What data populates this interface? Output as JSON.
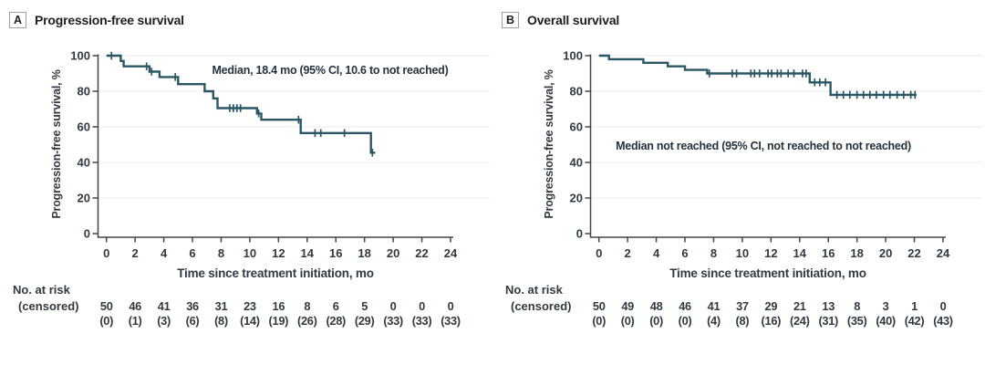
{
  "colors": {
    "curve": "#2b5665",
    "grid": "#ececec",
    "axis": "#454545",
    "text": "#303a42",
    "title": "#1e1e1c",
    "annotation": "#24323d",
    "tag_border": "#9aa1a7"
  },
  "chart_data": {
    "type": "line",
    "subtype": "kaplan-meier-step",
    "grid": "horizontal-light",
    "legend": "none",
    "xlim": [
      0,
      24
    ],
    "ylim": [
      0,
      100
    ],
    "x_ticks": [
      0,
      2,
      4,
      6,
      8,
      10,
      12,
      14,
      16,
      18,
      20,
      22,
      24
    ],
    "y_ticks": [
      0,
      20,
      40,
      60,
      80,
      100
    ],
    "panels": [
      {
        "tag": "A",
        "title": "Progression-free survival",
        "y_label": "Progression-free survival, %",
        "x_label": "Time since treatment initiation, mo",
        "annotation": "Median, 18.4 mo (95% CI, 10.6 to not reached)",
        "median_months": "18.4",
        "steps": [
          [
            0,
            100
          ],
          [
            1.0,
            97
          ],
          [
            1.2,
            94
          ],
          [
            3.0,
            91
          ],
          [
            3.7,
            88
          ],
          [
            5.0,
            84
          ],
          [
            6.85,
            80
          ],
          [
            7.45,
            76
          ],
          [
            7.75,
            70.5
          ],
          [
            10.5,
            67.5
          ],
          [
            10.8,
            64
          ],
          [
            13.55,
            56.5
          ],
          [
            18.45,
            45.5
          ]
        ],
        "end_time": 18.75,
        "censors": [
          [
            0.35,
            100
          ],
          [
            2.8,
            94
          ],
          [
            3.15,
            91
          ],
          [
            4.8,
            88
          ],
          [
            8.6,
            70.5
          ],
          [
            8.85,
            70.5
          ],
          [
            9.1,
            70.5
          ],
          [
            9.35,
            70.5
          ],
          [
            10.62,
            67.5
          ],
          [
            13.4,
            64
          ],
          [
            14.55,
            56.5
          ],
          [
            14.95,
            56.5
          ],
          [
            16.6,
            56.5
          ],
          [
            18.55,
            45.5
          ]
        ],
        "risk_label1": "No. at risk",
        "risk_label2": "(censored)",
        "at_risk": [
          "50",
          "46",
          "41",
          "36",
          "31",
          "23",
          "16",
          "8",
          "6",
          "5",
          "0",
          "0",
          "0"
        ],
        "censored": [
          "(0)",
          "(1)",
          "(3)",
          "(6)",
          "(8)",
          "(14)",
          "(19)",
          "(26)",
          "(28)",
          "(29)",
          "(33)",
          "(33)",
          "(33)"
        ]
      },
      {
        "tag": "B",
        "title": "Overall survival",
        "y_label": "Progression-free survival, %",
        "x_label": "Time since treatment initiation, mo",
        "annotation": "Median not reached (95% CI, not reached to not reached)",
        "median_months": "not reached",
        "steps": [
          [
            0,
            100
          ],
          [
            0.7,
            98
          ],
          [
            3.1,
            96
          ],
          [
            4.8,
            94
          ],
          [
            6.0,
            92
          ],
          [
            7.55,
            90
          ],
          [
            14.7,
            85
          ],
          [
            16.15,
            78
          ]
        ],
        "end_time": 22.15,
        "censors": [
          [
            7.7,
            90
          ],
          [
            9.3,
            90
          ],
          [
            9.6,
            90
          ],
          [
            10.6,
            90
          ],
          [
            10.85,
            90
          ],
          [
            11.2,
            90
          ],
          [
            11.8,
            90
          ],
          [
            12.05,
            90
          ],
          [
            12.45,
            90
          ],
          [
            12.7,
            90
          ],
          [
            13.2,
            90
          ],
          [
            13.6,
            90
          ],
          [
            14.2,
            90
          ],
          [
            14.45,
            90
          ],
          [
            15.05,
            85
          ],
          [
            15.4,
            85
          ],
          [
            15.8,
            85
          ],
          [
            16.6,
            78
          ],
          [
            17.05,
            78
          ],
          [
            17.5,
            78
          ],
          [
            18.0,
            78
          ],
          [
            18.45,
            78
          ],
          [
            18.9,
            78
          ],
          [
            19.35,
            78
          ],
          [
            19.85,
            78
          ],
          [
            20.3,
            78
          ],
          [
            20.8,
            78
          ],
          [
            21.25,
            78
          ],
          [
            21.75,
            78
          ],
          [
            22.05,
            78
          ]
        ],
        "risk_label1": "No. at risk",
        "risk_label2": "(censored)",
        "at_risk": [
          "50",
          "49",
          "48",
          "46",
          "41",
          "37",
          "29",
          "21",
          "13",
          "8",
          "3",
          "1",
          "0"
        ],
        "censored": [
          "(0)",
          "(0)",
          "(0)",
          "(0)",
          "(4)",
          "(8)",
          "(16)",
          "(24)",
          "(31)",
          "(35)",
          "(40)",
          "(42)",
          "(43)"
        ]
      }
    ]
  }
}
